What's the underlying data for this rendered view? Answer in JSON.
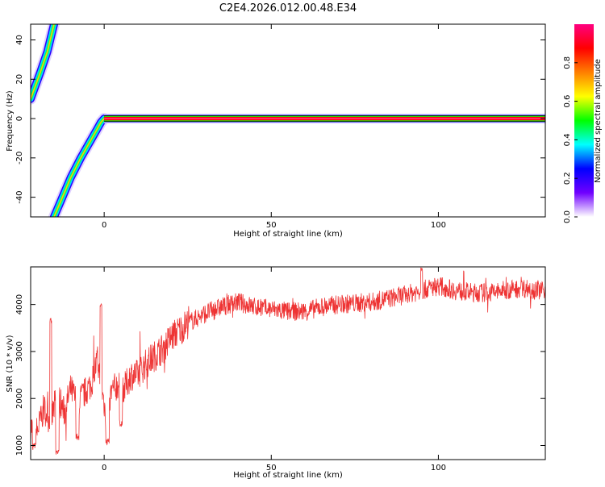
{
  "chart_data": [
    {
      "type": "heatmap",
      "title": "C2E4.2026.012.00.48.E34",
      "xlabel": "Height of straight line (km)",
      "ylabel": "Frequency (Hz)",
      "xlim": [
        -22,
        132
      ],
      "ylim": [
        -50,
        48
      ],
      "xticks": [
        "0",
        "50",
        "100"
      ],
      "yticks": [
        "40",
        "20",
        "0",
        "-20",
        "-40"
      ],
      "ridge": {
        "lower_branch": {
          "x": [
            -15,
            -13,
            -10,
            -7,
            -4,
            -2,
            -1,
            0
          ],
          "y": [
            -50,
            -42,
            -30,
            -20,
            -11,
            -5,
            -2,
            0
          ]
        },
        "upper_branch": {
          "x": [
            -22,
            -19,
            -17,
            -15
          ],
          "y": [
            10,
            24,
            34,
            48
          ]
        },
        "constant": {
          "x_start": 0,
          "x_end": 132,
          "y": 0
        }
      },
      "colorbar": {
        "label": "Normalized spectral amplitude",
        "ticks": [
          "0.0",
          "0.2",
          "0.4",
          "0.6",
          "0.8"
        ],
        "range": [
          0,
          1
        ],
        "colors": [
          "#ffffff",
          "#7000ff",
          "#0000ff",
          "#00ffff",
          "#00ff00",
          "#ffff00",
          "#ff7f00",
          "#ff0000",
          "#ff0080"
        ]
      }
    },
    {
      "type": "line",
      "xlabel": "Height of straight line (km)",
      "ylabel": "SNR (10 * v/v)",
      "xlim": [
        -22,
        132
      ],
      "ylim": [
        700,
        4800
      ],
      "xticks": [
        "0",
        "50",
        "100"
      ],
      "yticks": [
        "4000",
        "3000",
        "2000",
        "1000"
      ],
      "color": "#ee3333",
      "trend": {
        "x": [
          -22,
          -20,
          -18,
          -16,
          -14,
          -12,
          -10,
          -8,
          -6,
          -4,
          -2,
          0,
          1,
          2,
          4,
          6,
          8,
          10,
          12,
          15,
          18,
          20,
          25,
          30,
          35,
          40,
          45,
          50,
          55,
          60,
          65,
          70,
          80,
          90,
          95,
          100,
          105,
          110,
          115,
          120,
          125,
          132
        ],
        "y": [
          1400,
          1300,
          1800,
          1500,
          2100,
          1700,
          2200,
          1900,
          2100,
          2300,
          2800,
          1900,
          1300,
          2100,
          2300,
          2200,
          2500,
          2500,
          2700,
          2900,
          3100,
          3300,
          3600,
          3800,
          3950,
          4050,
          3950,
          3900,
          3850,
          3850,
          3950,
          4000,
          4050,
          4200,
          4300,
          4400,
          4300,
          4250,
          4250,
          4300,
          4350,
          4300
        ]
      },
      "dips": [
        {
          "x": -21,
          "y": 900
        },
        {
          "x": -14,
          "y": 780
        },
        {
          "x": -8,
          "y": 1100
        },
        {
          "x": 1,
          "y": 1000
        },
        {
          "x": 5,
          "y": 1400
        }
      ],
      "peaks": [
        {
          "x": -16,
          "y": 3700
        },
        {
          "x": -1,
          "y": 4050
        },
        {
          "x": 95,
          "y": 4800
        }
      ]
    }
  ]
}
